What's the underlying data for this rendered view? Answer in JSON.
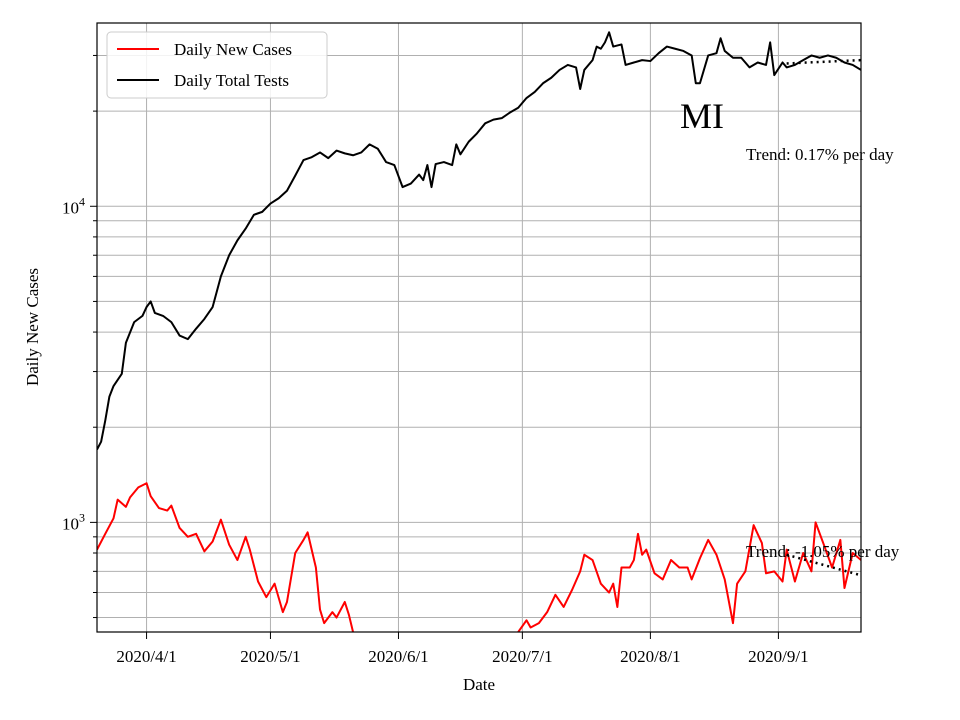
{
  "chart_data": {
    "type": "line",
    "title": "MI",
    "xlabel": "Date",
    "ylabel": "Daily New Cases",
    "yscale": "log",
    "ylim": [
      450,
      38000
    ],
    "xlim": [
      "2020-03-20",
      "2020-09-21"
    ],
    "grid": true,
    "legend_position": "top-left",
    "x_ticks": [
      "2020/4/1",
      "2020/5/1",
      "2020/6/1",
      "2020/7/1",
      "2020/8/1",
      "2020/9/1"
    ],
    "y_ticks": [
      {
        "base": "10",
        "exp": "3",
        "value": 1000
      },
      {
        "base": "10",
        "exp": "4",
        "value": 10000
      }
    ],
    "annotations": {
      "tests_trend": "Trend: 0.17% per day",
      "cases_trend": "Trend: -1.05% per day"
    },
    "series": [
      {
        "name": "Daily New Cases",
        "color": "#ff0000",
        "points": [
          [
            "2020-03-20",
            820
          ],
          [
            "2020-03-22",
            920
          ],
          [
            "2020-03-24",
            1030
          ],
          [
            "2020-03-25",
            1180
          ],
          [
            "2020-03-27",
            1120
          ],
          [
            "2020-03-28",
            1200
          ],
          [
            "2020-03-30",
            1290
          ],
          [
            "2020-04-01",
            1330
          ],
          [
            "2020-04-02",
            1210
          ],
          [
            "2020-04-04",
            1110
          ],
          [
            "2020-04-06",
            1090
          ],
          [
            "2020-04-07",
            1130
          ],
          [
            "2020-04-09",
            960
          ],
          [
            "2020-04-11",
            900
          ],
          [
            "2020-04-13",
            920
          ],
          [
            "2020-04-15",
            810
          ],
          [
            "2020-04-17",
            870
          ],
          [
            "2020-04-19",
            1020
          ],
          [
            "2020-04-21",
            850
          ],
          [
            "2020-04-23",
            760
          ],
          [
            "2020-04-25",
            900
          ],
          [
            "2020-04-26",
            820
          ],
          [
            "2020-04-28",
            650
          ],
          [
            "2020-04-30",
            580
          ],
          [
            "2020-05-02",
            640
          ],
          [
            "2020-05-04",
            520
          ],
          [
            "2020-05-05",
            560
          ],
          [
            "2020-05-07",
            800
          ],
          [
            "2020-05-09",
            880
          ],
          [
            "2020-05-10",
            930
          ],
          [
            "2020-05-12",
            720
          ],
          [
            "2020-05-13",
            530
          ],
          [
            "2020-05-14",
            480
          ],
          [
            "2020-05-16",
            520
          ],
          [
            "2020-05-17",
            500
          ],
          [
            "2020-05-19",
            560
          ],
          [
            "2020-05-20",
            510
          ],
          [
            "2020-05-21",
            450
          ]
        ],
        "points_2": [
          [
            "2020-06-30",
            450
          ],
          [
            "2020-07-02",
            490
          ],
          [
            "2020-07-03",
            465
          ],
          [
            "2020-07-05",
            480
          ],
          [
            "2020-07-07",
            520
          ],
          [
            "2020-07-09",
            590
          ],
          [
            "2020-07-11",
            540
          ],
          [
            "2020-07-13",
            610
          ],
          [
            "2020-07-15",
            700
          ],
          [
            "2020-07-16",
            790
          ],
          [
            "2020-07-18",
            760
          ],
          [
            "2020-07-20",
            640
          ],
          [
            "2020-07-22",
            600
          ],
          [
            "2020-07-23",
            640
          ],
          [
            "2020-07-24",
            540
          ],
          [
            "2020-07-25",
            720
          ],
          [
            "2020-07-27",
            720
          ],
          [
            "2020-07-28",
            760
          ],
          [
            "2020-07-29",
            920
          ],
          [
            "2020-07-30",
            790
          ],
          [
            "2020-07-31",
            820
          ],
          [
            "2020-08-02",
            690
          ],
          [
            "2020-08-04",
            660
          ],
          [
            "2020-08-06",
            760
          ],
          [
            "2020-08-08",
            720
          ],
          [
            "2020-08-10",
            720
          ],
          [
            "2020-08-11",
            660
          ],
          [
            "2020-08-13",
            770
          ],
          [
            "2020-08-15",
            880
          ],
          [
            "2020-08-17",
            790
          ],
          [
            "2020-08-19",
            660
          ],
          [
            "2020-08-21",
            480
          ],
          [
            "2020-08-22",
            640
          ],
          [
            "2020-08-24",
            700
          ],
          [
            "2020-08-26",
            980
          ],
          [
            "2020-08-28",
            860
          ],
          [
            "2020-08-29",
            690
          ],
          [
            "2020-08-31",
            700
          ],
          [
            "2020-09-02",
            650
          ],
          [
            "2020-09-03",
            820
          ],
          [
            "2020-09-05",
            650
          ],
          [
            "2020-09-07",
            800
          ],
          [
            "2020-09-09",
            700
          ],
          [
            "2020-09-10",
            1000
          ],
          [
            "2020-09-12",
            850
          ],
          [
            "2020-09-14",
            720
          ],
          [
            "2020-09-16",
            880
          ],
          [
            "2020-09-17",
            620
          ],
          [
            "2020-09-19",
            800
          ],
          [
            "2020-09-21",
            760
          ]
        ],
        "trend": [
          [
            "2020-09-03",
            790
          ],
          [
            "2020-09-21",
            680
          ]
        ]
      },
      {
        "name": "Daily Total Tests",
        "color": "#000000",
        "points": [
          [
            "2020-03-20",
            1700
          ],
          [
            "2020-03-21",
            1800
          ],
          [
            "2020-03-22",
            2100
          ],
          [
            "2020-03-23",
            2500
          ],
          [
            "2020-03-24",
            2700
          ],
          [
            "2020-03-26",
            2950
          ],
          [
            "2020-03-27",
            3700
          ],
          [
            "2020-03-29",
            4300
          ],
          [
            "2020-03-31",
            4500
          ],
          [
            "2020-04-01",
            4800
          ],
          [
            "2020-04-02",
            5000
          ],
          [
            "2020-04-03",
            4600
          ],
          [
            "2020-04-05",
            4500
          ],
          [
            "2020-04-07",
            4300
          ],
          [
            "2020-04-09",
            3900
          ],
          [
            "2020-04-11",
            3800
          ],
          [
            "2020-04-13",
            4100
          ],
          [
            "2020-04-15",
            4400
          ],
          [
            "2020-04-17",
            4800
          ],
          [
            "2020-04-19",
            6000
          ],
          [
            "2020-04-21",
            7000
          ],
          [
            "2020-04-23",
            7800
          ],
          [
            "2020-04-25",
            8500
          ],
          [
            "2020-04-27",
            9400
          ],
          [
            "2020-04-29",
            9600
          ],
          [
            "2020-05-01",
            10200
          ],
          [
            "2020-05-03",
            10600
          ],
          [
            "2020-05-05",
            11200
          ],
          [
            "2020-05-07",
            12500
          ],
          [
            "2020-05-09",
            14000
          ],
          [
            "2020-05-11",
            14300
          ],
          [
            "2020-05-13",
            14800
          ],
          [
            "2020-05-15",
            14200
          ],
          [
            "2020-05-17",
            15000
          ],
          [
            "2020-05-19",
            14700
          ],
          [
            "2020-05-21",
            14500
          ],
          [
            "2020-05-23",
            14800
          ],
          [
            "2020-05-25",
            15700
          ],
          [
            "2020-05-27",
            15200
          ],
          [
            "2020-05-29",
            13800
          ],
          [
            "2020-05-31",
            13500
          ],
          [
            "2020-06-02",
            11500
          ],
          [
            "2020-06-04",
            11800
          ],
          [
            "2020-06-06",
            12600
          ],
          [
            "2020-06-07",
            12100
          ],
          [
            "2020-06-08",
            13500
          ],
          [
            "2020-06-09",
            11500
          ],
          [
            "2020-06-10",
            13600
          ],
          [
            "2020-06-12",
            13800
          ],
          [
            "2020-06-14",
            13500
          ],
          [
            "2020-06-15",
            15700
          ],
          [
            "2020-06-16",
            14600
          ],
          [
            "2020-06-18",
            16000
          ],
          [
            "2020-06-20",
            17000
          ],
          [
            "2020-06-22",
            18300
          ],
          [
            "2020-06-24",
            18800
          ],
          [
            "2020-06-26",
            19000
          ],
          [
            "2020-06-28",
            19800
          ],
          [
            "2020-06-30",
            20500
          ],
          [
            "2020-07-02",
            22000
          ],
          [
            "2020-07-04",
            23000
          ],
          [
            "2020-07-06",
            24500
          ],
          [
            "2020-07-08",
            25500
          ],
          [
            "2020-07-10",
            27000
          ],
          [
            "2020-07-12",
            28000
          ],
          [
            "2020-07-14",
            27500
          ],
          [
            "2020-07-15",
            23500
          ],
          [
            "2020-07-16",
            27000
          ],
          [
            "2020-07-18",
            29000
          ],
          [
            "2020-07-19",
            32000
          ],
          [
            "2020-07-20",
            31500
          ],
          [
            "2020-07-21",
            33000
          ],
          [
            "2020-07-22",
            35500
          ],
          [
            "2020-07-23",
            32000
          ],
          [
            "2020-07-25",
            32500
          ],
          [
            "2020-07-26",
            28000
          ],
          [
            "2020-07-28",
            28500
          ],
          [
            "2020-07-30",
            29000
          ],
          [
            "2020-08-01",
            28800
          ],
          [
            "2020-08-03",
            30500
          ],
          [
            "2020-08-05",
            32000
          ],
          [
            "2020-08-07",
            31500
          ],
          [
            "2020-08-09",
            31000
          ],
          [
            "2020-08-11",
            30000
          ],
          [
            "2020-08-12",
            24500
          ],
          [
            "2020-08-13",
            24500
          ],
          [
            "2020-08-15",
            30000
          ],
          [
            "2020-08-17",
            30500
          ],
          [
            "2020-08-18",
            34000
          ],
          [
            "2020-08-19",
            31000
          ],
          [
            "2020-08-21",
            29500
          ],
          [
            "2020-08-23",
            29500
          ],
          [
            "2020-08-25",
            27500
          ],
          [
            "2020-08-27",
            28500
          ],
          [
            "2020-08-29",
            28000
          ],
          [
            "2020-08-30",
            33000
          ],
          [
            "2020-08-31",
            26000
          ],
          [
            "2020-09-02",
            28500
          ],
          [
            "2020-09-03",
            27500
          ],
          [
            "2020-09-05",
            28000
          ],
          [
            "2020-09-07",
            29000
          ],
          [
            "2020-09-09",
            30000
          ],
          [
            "2020-09-11",
            29500
          ],
          [
            "2020-09-13",
            30000
          ],
          [
            "2020-09-15",
            29500
          ],
          [
            "2020-09-17",
            28500
          ],
          [
            "2020-09-19",
            28000
          ],
          [
            "2020-09-21",
            27000
          ]
        ],
        "trend": [
          [
            "2020-09-03",
            28300
          ],
          [
            "2020-09-21",
            29000
          ]
        ]
      }
    ]
  }
}
